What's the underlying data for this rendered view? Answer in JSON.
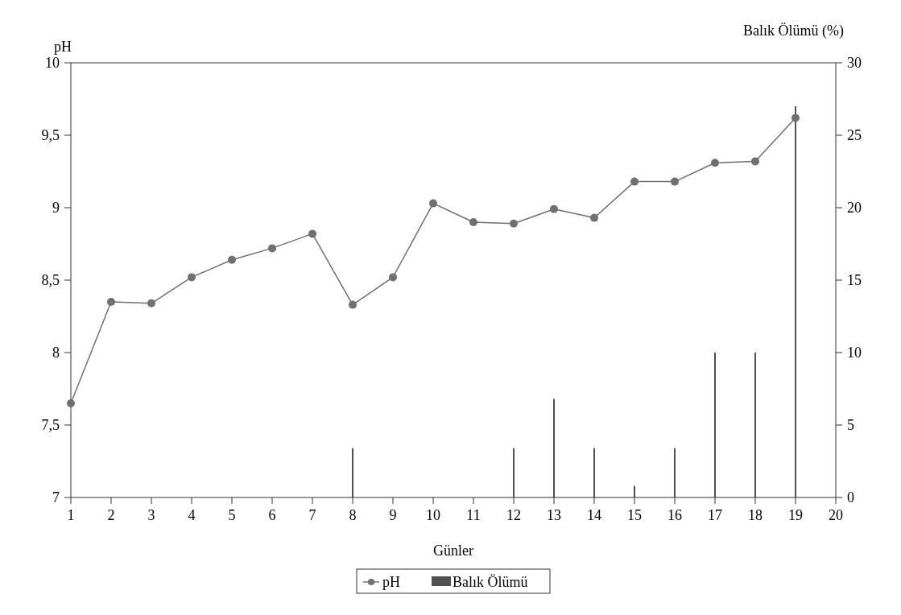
{
  "chart_data": {
    "type": "line",
    "xlabel": "Günler",
    "ylabel": "pH",
    "y2label": "Balık Ölümü (%)",
    "x": [
      1,
      2,
      3,
      4,
      5,
      6,
      7,
      8,
      9,
      10,
      11,
      12,
      13,
      14,
      15,
      16,
      17,
      18,
      19
    ],
    "series": [
      {
        "name": "pH",
        "color": "#707070",
        "values": [
          7.65,
          8.35,
          8.34,
          8.52,
          8.64,
          8.72,
          8.82,
          8.33,
          8.52,
          9.03,
          8.9,
          8.89,
          8.99,
          8.93,
          9.18,
          9.18,
          9.31,
          9.32,
          9.62
        ]
      },
      {
        "name": "Balık Ölümü",
        "type": "bar",
        "axis": "y2",
        "color": "#505050",
        "values": [
          0,
          0,
          0,
          0,
          0,
          0,
          0,
          3.4,
          0,
          0,
          0,
          3.4,
          6.8,
          3.4,
          0.8,
          3.4,
          10,
          10,
          27
        ]
      }
    ],
    "xlim": [
      1,
      20
    ],
    "xticks": [
      1,
      2,
      3,
      4,
      5,
      6,
      7,
      8,
      9,
      10,
      11,
      12,
      13,
      14,
      15,
      16,
      17,
      18,
      19,
      20
    ],
    "ylim": [
      7,
      10
    ],
    "yticks": [
      7,
      {
        "value": 7.5,
        "label": "7,5"
      },
      8,
      {
        "value": 8.5,
        "label": "8,5"
      },
      9,
      {
        "value": 9.5,
        "label": "9,5"
      },
      10
    ],
    "y2lim": [
      0,
      30
    ],
    "y2ticks": [
      0,
      5,
      10,
      15,
      20,
      25,
      30
    ],
    "marker": "circle",
    "line_style": "solid",
    "grid": false,
    "legend": "bottom"
  }
}
